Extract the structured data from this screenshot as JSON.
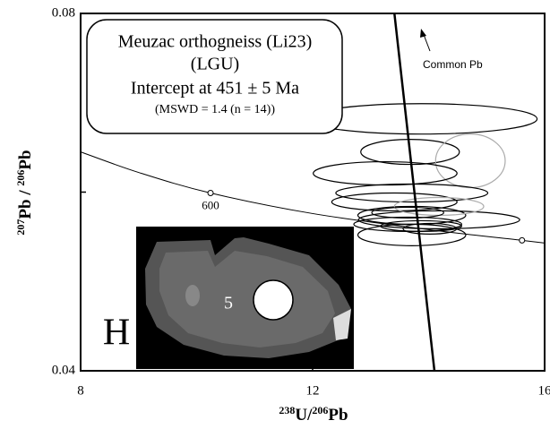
{
  "chart_data": {
    "type": "error-ellipse",
    "xlabel": {
      "sup": "238",
      "t1": "U/",
      "sup2": "206",
      "t2": "Pb"
    },
    "ylabel": {
      "sup": "207",
      "t1": "Pb / ",
      "sup2": "206",
      "t2": "Pb"
    },
    "xlim": [
      8,
      16
    ],
    "ylim": [
      0.04,
      0.08
    ],
    "xticks": [
      8,
      12,
      16
    ],
    "yticks": [
      0.04,
      {
        "value": 0.06,
        "label": null
      },
      0.08
    ],
    "box": [
      "Meuzac orthogneiss (Li23)",
      "(LGU)",
      "Intercept at 451 ± 5 Ma",
      "(MSWD = 1.4 (n = 14))"
    ],
    "panel_label": "H",
    "inset_label": "5",
    "common_pb_label": "Common Pb",
    "concordia": {
      "x": [
        8,
        9,
        10.24,
        12,
        14,
        15.61,
        16
      ],
      "y": [
        0.0645,
        0.0622,
        0.0599,
        0.0576,
        0.0558,
        0.0546,
        0.0543
      ]
    },
    "concordia_ages": [
      {
        "x": 10.24,
        "y": 0.0599,
        "label": "600"
      },
      {
        "x": 15.61,
        "y": 0.0546
      }
    ],
    "discordia": {
      "x": [
        13.41,
        14.1
      ],
      "y": [
        0.08,
        0.04
      ]
    },
    "ellipses": [
      {
        "x": 13.87,
        "y": 0.0682,
        "sx": 2.0,
        "sy": 0.0017,
        "color": "#000000"
      },
      {
        "x": 13.68,
        "y": 0.0645,
        "sx": 0.85,
        "sy": 0.0014,
        "color": "#000000"
      },
      {
        "x": 14.72,
        "y": 0.0635,
        "sx": 0.6,
        "sy": 0.003,
        "color": "#aaaaaa"
      },
      {
        "x": 13.25,
        "y": 0.0621,
        "sx": 1.24,
        "sy": 0.0013,
        "color": "#000000"
      },
      {
        "x": 13.71,
        "y": 0.0599,
        "sx": 1.31,
        "sy": 0.001,
        "color": "#000000"
      },
      {
        "x": 13.41,
        "y": 0.0589,
        "sx": 1.08,
        "sy": 0.001,
        "color": "#000000"
      },
      {
        "x": 13.71,
        "y": 0.0574,
        "sx": 0.93,
        "sy": 0.001,
        "color": "#000000"
      },
      {
        "x": 14.18,
        "y": 0.0569,
        "sx": 1.39,
        "sy": 0.001,
        "color": "#000000"
      },
      {
        "x": 13.64,
        "y": 0.0564,
        "sx": 0.93,
        "sy": 0.0008,
        "color": "#000000"
      },
      {
        "x": 13.87,
        "y": 0.0562,
        "sx": 0.7,
        "sy": 0.0006,
        "color": "#000000"
      },
      {
        "x": 13.71,
        "y": 0.0552,
        "sx": 0.93,
        "sy": 0.0012,
        "color": "#000000"
      },
      {
        "x": 14.18,
        "y": 0.0584,
        "sx": 0.77,
        "sy": 0.001,
        "color": "#aaaaaa"
      },
      {
        "x": 14.02,
        "y": 0.0559,
        "sx": 0.46,
        "sy": 0.0006,
        "color": "#000000"
      },
      {
        "x": 13.64,
        "y": 0.0577,
        "sx": 0.62,
        "sy": 0.0006,
        "color": "#000000"
      }
    ]
  }
}
